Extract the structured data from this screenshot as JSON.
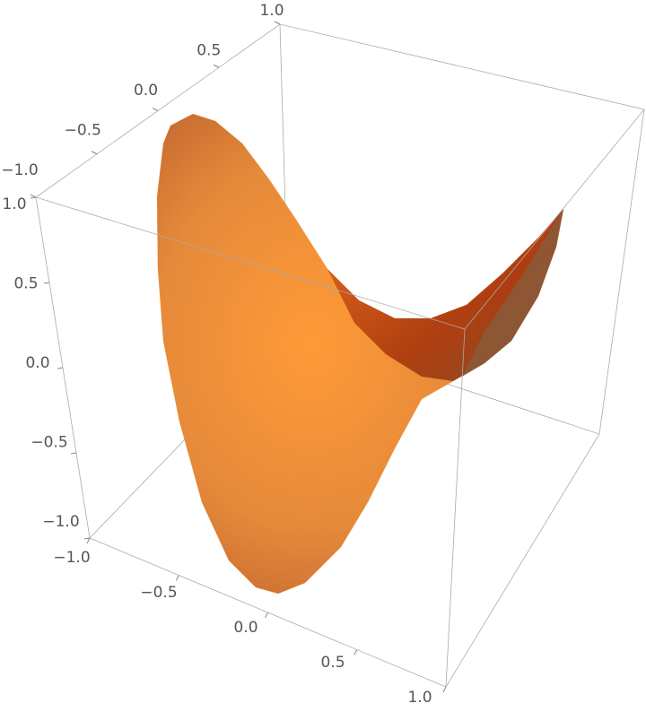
{
  "chart_data": {
    "type": "surface3d",
    "xlim": [
      -1,
      1
    ],
    "xticks": [
      {
        "value": -1,
        "label": "−1.0"
      },
      {
        "value": -0.5,
        "label": "−0.5"
      },
      {
        "value": 0,
        "label": "0.0"
      },
      0.5,
      {
        "value": 1,
        "label": "1.0"
      }
    ],
    "ylim": [
      -1,
      1
    ],
    "yticks": [
      {
        "value": -1,
        "label": "−1.0"
      },
      {
        "value": -0.5,
        "label": "−0.5"
      },
      {
        "value": 0,
        "label": "0.0"
      },
      0.5,
      {
        "value": 1,
        "label": "1.0"
      }
    ],
    "zlim": [
      -1,
      1
    ],
    "zticks": [
      {
        "value": -1,
        "label": "−1.0"
      },
      {
        "value": -0.5,
        "label": "−0.5"
      },
      {
        "value": 0,
        "label": "0.0"
      },
      0.5,
      {
        "value": 1,
        "label": "1.0"
      }
    ],
    "color": "#f39234"
  }
}
